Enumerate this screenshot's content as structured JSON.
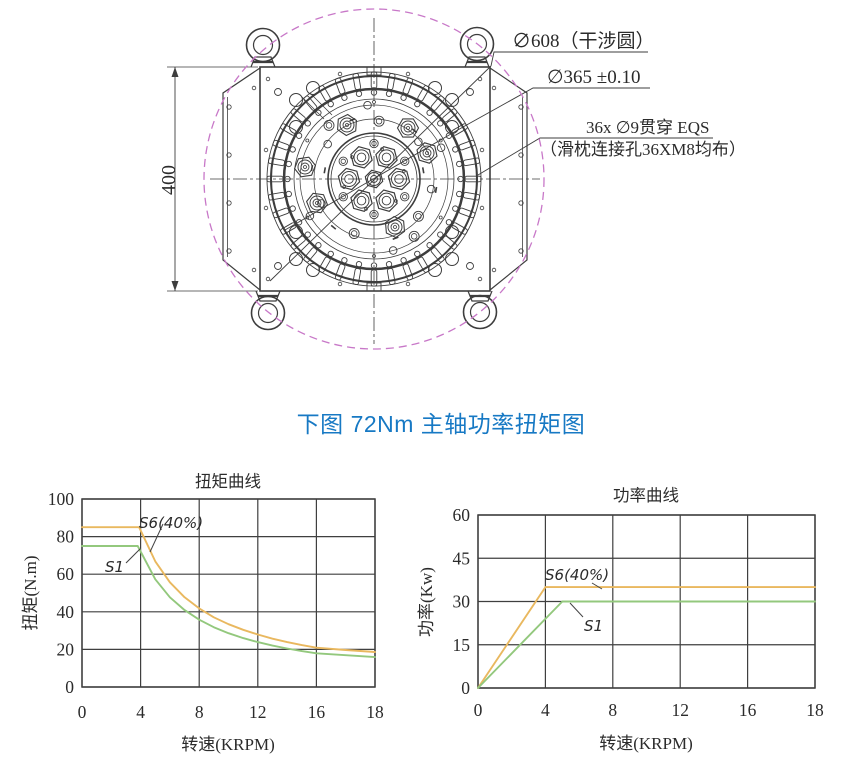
{
  "page_title": "下图 72Nm 主轴功率扭矩图",
  "colors": {
    "title_blue": "#1779c4",
    "drawing_line": "#3d3d3d",
    "interference_magenta": "#c878c8",
    "grid_line": "#3f3f3f",
    "curve_s6": "#e9b85f",
    "curve_s1": "#93c87d"
  },
  "drawing": {
    "dim_height": "400",
    "callouts": {
      "interference": "∅608（干涉圆）",
      "bolt_circle": "∅365 ±0.10",
      "through_holes_line1": "36x ∅9贯穿 EQS",
      "through_holes_line2": "（滑枕连接孔36XM8均布）"
    }
  },
  "chart_data": [
    {
      "type": "line",
      "title": "扭矩曲线",
      "xlabel": "转速(KRPM)",
      "ylabel": "扭矩(N.m)",
      "x_ticks": [
        0,
        4,
        8,
        12,
        16,
        18
      ],
      "y_ticks": [
        0,
        20,
        40,
        60,
        80,
        100
      ],
      "xlim": [
        0,
        18
      ],
      "ylim": [
        0,
        100
      ],
      "grid": true,
      "legend": "inline curve labels",
      "x_tick_spacing": "equal divisions (last division spans 16-18)",
      "series": [
        {
          "name": "S6(40%)",
          "color": "#e9b85f",
          "points": [
            [
              0,
              85
            ],
            [
              3.9,
              85
            ],
            [
              5,
              66.8
            ],
            [
              6,
              55.7
            ],
            [
              7,
              47.7
            ],
            [
              8,
              41.8
            ],
            [
              9,
              37.1
            ],
            [
              10,
              33.4
            ],
            [
              11,
              30.4
            ],
            [
              12,
              27.9
            ],
            [
              13,
              25.7
            ],
            [
              14,
              23.9
            ],
            [
              15,
              22.3
            ],
            [
              16,
              20.9
            ],
            [
              17,
              19.7
            ],
            [
              18,
              18.6
            ]
          ]
        },
        {
          "name": "S1",
          "color": "#93c87d",
          "points": [
            [
              0,
              75
            ],
            [
              3.8,
              75
            ],
            [
              5,
              57.3
            ],
            [
              6,
              47.7
            ],
            [
              7,
              40.9
            ],
            [
              8,
              35.8
            ],
            [
              9,
              31.8
            ],
            [
              10,
              28.6
            ],
            [
              11,
              26.0
            ],
            [
              12,
              23.9
            ],
            [
              13,
              22.0
            ],
            [
              14,
              20.5
            ],
            [
              15,
              19.1
            ],
            [
              16,
              17.9
            ],
            [
              17,
              16.9
            ],
            [
              18,
              15.9
            ]
          ]
        }
      ]
    },
    {
      "type": "line",
      "title": "功率曲线",
      "xlabel": "转速(KRPM)",
      "ylabel": "功率(Kw)",
      "x_ticks": [
        0,
        4,
        8,
        12,
        16,
        18
      ],
      "y_ticks": [
        0,
        15,
        30,
        45,
        60
      ],
      "xlim": [
        0,
        18
      ],
      "ylim": [
        0,
        60
      ],
      "grid": true,
      "legend": "inline curve labels",
      "x_tick_spacing": "equal divisions (last division spans 16-18)",
      "series": [
        {
          "name": "S6(40%)",
          "color": "#e9b85f",
          "points": [
            [
              0,
              0
            ],
            [
              4,
              35
            ],
            [
              18,
              35
            ]
          ]
        },
        {
          "name": "S1",
          "color": "#93c87d",
          "points": [
            [
              0,
              0
            ],
            [
              5,
              30
            ],
            [
              18,
              30
            ]
          ]
        }
      ]
    }
  ]
}
